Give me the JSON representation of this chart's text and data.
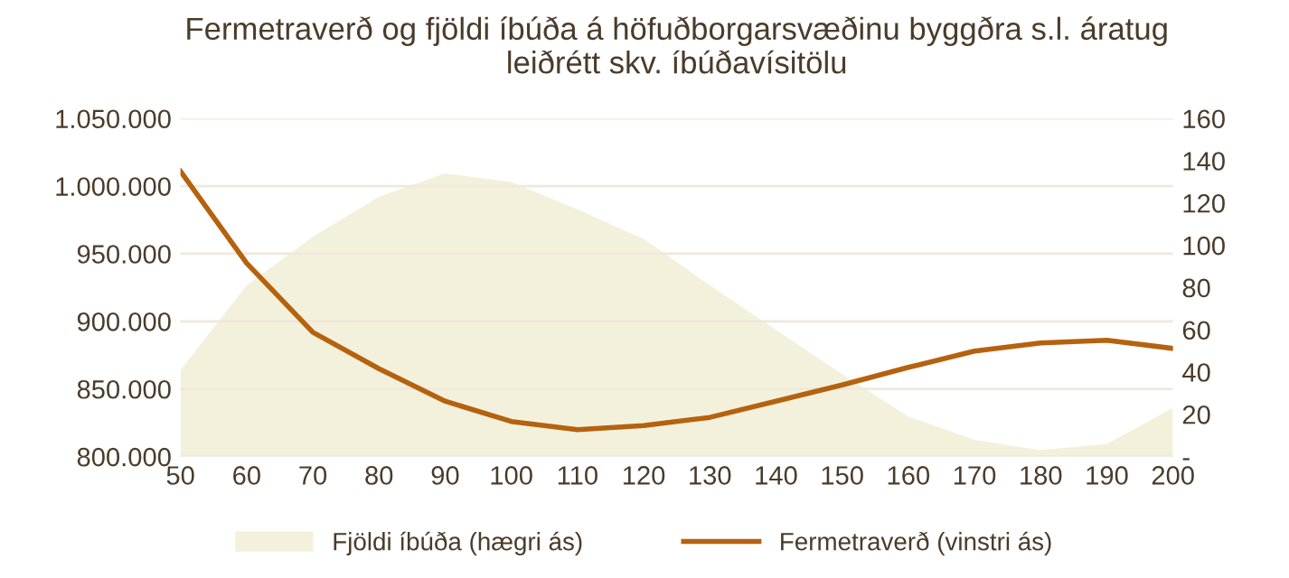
{
  "chart_data": {
    "type": "line",
    "title": "Fermetraverð og fjöldi íbúða á höfuðborgarsvæðinu byggðra s.l. áratug\nleiðrétt skv. íbúðavísitölu",
    "x": [
      50,
      60,
      70,
      80,
      90,
      100,
      110,
      120,
      130,
      140,
      150,
      160,
      170,
      180,
      190,
      200
    ],
    "series": [
      {
        "name": "Fjöldi íbúða (hægri ás)",
        "type": "area",
        "axis": "y2",
        "color": "#f3f1dc",
        "values": [
          41,
          81,
          104,
          123,
          134,
          130,
          117,
          103,
          81,
          60,
          39,
          19,
          8,
          3,
          6,
          23
        ]
      },
      {
        "name": "Fermetraverð (vinstri ás)",
        "color": "#b5620f",
        "values": [
          1011000,
          943000,
          892000,
          865000,
          841000,
          826000,
          820000,
          823000,
          829000,
          841000,
          853000,
          866000,
          878000,
          884000,
          886000,
          880000
        ]
      }
    ],
    "xlim": [
      50,
      200
    ],
    "xticks": [
      50,
      60,
      70,
      80,
      90,
      100,
      110,
      120,
      130,
      140,
      150,
      160,
      170,
      180,
      190,
      200
    ],
    "ylim": [
      800000,
      1050000
    ],
    "yticks": [
      {
        "value": 800000,
        "label": "800.000"
      },
      {
        "value": 850000,
        "label": "850.000"
      },
      {
        "value": 900000,
        "label": "900.000"
      },
      {
        "value": 950000,
        "label": "950.000"
      },
      {
        "value": 1000000,
        "label": "1.000.000"
      },
      {
        "value": 1050000,
        "label": "1.050.000"
      }
    ],
    "y2lim": [
      0,
      160
    ],
    "y2ticks": [
      {
        "value": 0,
        "label": "-"
      },
      20,
      40,
      60,
      80,
      100,
      120,
      140,
      160
    ],
    "grid": "y",
    "legend": "bottom",
    "marker": "none",
    "line_style": "solid"
  }
}
